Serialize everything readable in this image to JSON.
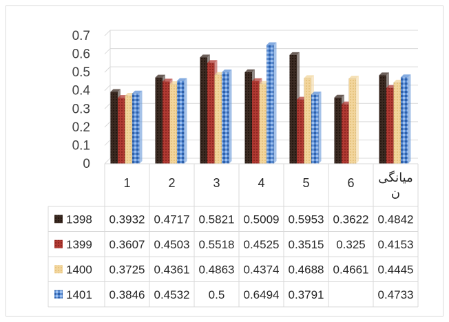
{
  "chart_data": {
    "type": "bar",
    "categories": [
      "1",
      "2",
      "3",
      "4",
      "5",
      "6",
      "میانگی ن"
    ],
    "category_lines": [
      [
        "1"
      ],
      [
        "2"
      ],
      [
        "3"
      ],
      [
        "4"
      ],
      [
        "5"
      ],
      [
        "6"
      ],
      [
        "میانگی",
        "ن"
      ]
    ],
    "yticks": [
      "0",
      "0.1",
      "0.2",
      "0.3",
      "0.4",
      "0.5",
      "0.6",
      "0.7"
    ],
    "ylim": [
      0,
      0.7
    ],
    "grid": true,
    "legend": "data table",
    "series": [
      {
        "name": "1398",
        "color": "#3b2a22",
        "values": [
          0.3932,
          0.4717,
          0.5821,
          0.5009,
          0.5953,
          0.3622,
          0.4842
        ],
        "labels": [
          "0.3932",
          "0.4717",
          "0.5821",
          "0.5009",
          "0.5953",
          "0.3622",
          "0.4842"
        ]
      },
      {
        "name": "1399",
        "color": "#b03a33",
        "values": [
          0.3607,
          0.4503,
          0.5518,
          0.4525,
          0.3515,
          0.325,
          0.4153
        ],
        "labels": [
          "0.3607",
          "0.4503",
          "0.5518",
          "0.4525",
          "0.3515",
          "0.325",
          "0.4153"
        ]
      },
      {
        "name": "1400",
        "color": "#f2d59c",
        "values": [
          0.3725,
          0.4361,
          0.4863,
          0.4374,
          0.4688,
          0.4661,
          0.4445
        ],
        "labels": [
          "0.3725",
          "0.4361",
          "0.4863",
          "0.4374",
          "0.4688",
          "0.4661",
          "0.4445"
        ]
      },
      {
        "name": "1401",
        "color": "#5b8fd6",
        "values": [
          0.3846,
          0.4532,
          0.5,
          0.6494,
          0.3791,
          null,
          0.4733
        ],
        "labels": [
          "0.3846",
          "0.4532",
          "0.5",
          "0.6494",
          "0.3791",
          "",
          "0.4733"
        ]
      }
    ]
  }
}
